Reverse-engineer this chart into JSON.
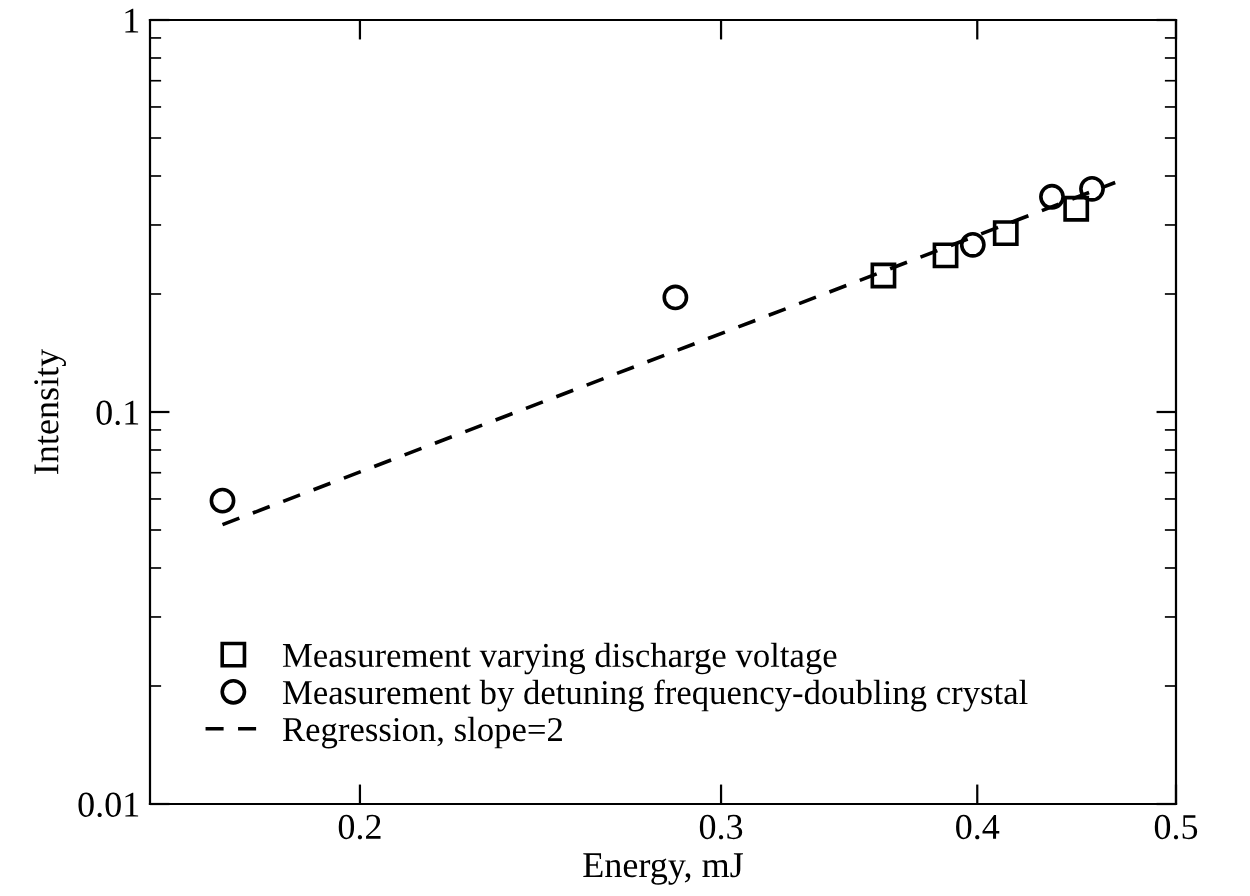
{
  "chart_data": {
    "type": "scatter",
    "xlabel": "Energy, mJ",
    "ylabel": "Intensity",
    "log": "xy",
    "grid": false,
    "legend": "bottom left",
    "xlim": [
      0.158,
      0.5
    ],
    "xticks": [
      0.2,
      0.3,
      0.4,
      0.5
    ],
    "ylim": [
      0.01,
      1
    ],
    "yticks": [
      0.01,
      0.1,
      1
    ],
    "series": [
      {
        "name": "Measurement varying discharge voltage",
        "marker": "square",
        "color": "#000000",
        "x": [
          0.36,
          0.386,
          0.413,
          0.447
        ],
        "values": [
          0.223,
          0.251,
          0.286,
          0.33
        ]
      },
      {
        "name": "Measurement by detuning frequency-doubling crystal",
        "marker": "circle",
        "color": "#000000",
        "x": [
          0.1714,
          0.285,
          0.398,
          0.435,
          0.455
        ],
        "values": [
          0.0594,
          0.196,
          0.267,
          0.354,
          0.371
        ]
      },
      {
        "name": "Regression, slope=2",
        "type": "line",
        "line_style": "dashed",
        "marker": "none",
        "color": "#000000",
        "x": [
          0.1714,
          0.467
        ],
        "values": [
          0.0516,
          0.385
        ]
      }
    ]
  }
}
